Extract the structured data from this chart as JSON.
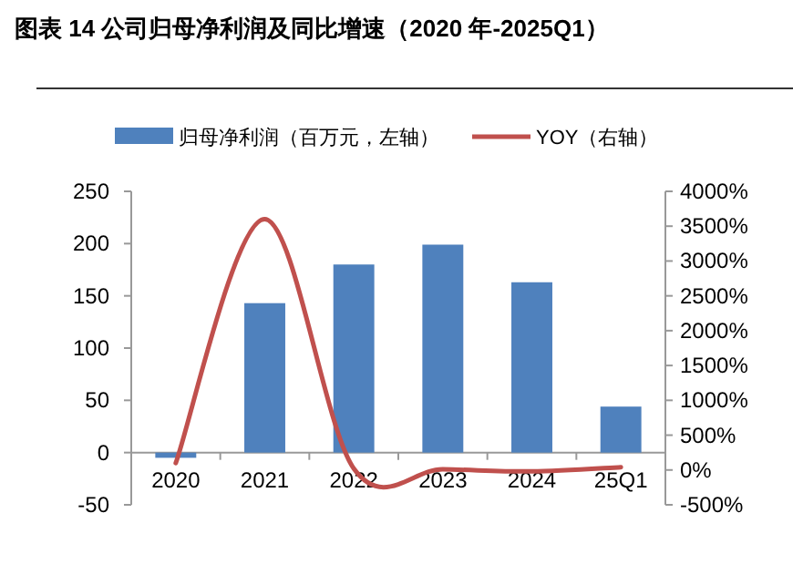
{
  "chart_data": {
    "type": "bar",
    "title": "图表 14  公司归母净利润及同比增速（2020 年-2025Q1）",
    "categories": [
      "2020",
      "2021",
      "2022",
      "2023",
      "2024",
      "25Q1"
    ],
    "series": [
      {
        "name": "归母净利润（百万元，左轴）",
        "color": "#4f81bd",
        "values": [
          -5,
          143,
          180,
          199,
          163,
          44
        ]
      },
      {
        "name": "YOY（右轴）",
        "type": "line",
        "axis": "y2",
        "color": "#c0504d",
        "values": [
          100,
          3600,
          20,
          10,
          -20,
          40
        ]
      }
    ],
    "ylim": [
      -50,
      250
    ],
    "yticks": [
      -50,
      0,
      50,
      100,
      150,
      200,
      250
    ],
    "y2lim": [
      -500,
      4000
    ],
    "y2ticks": [
      {
        "value": -500,
        "label": "-500%"
      },
      {
        "value": 0,
        "label": "0%"
      },
      {
        "value": 500,
        "label": "500%"
      },
      {
        "value": 1000,
        "label": "1000%"
      },
      {
        "value": 1500,
        "label": "1500%"
      },
      {
        "value": 2000,
        "label": "2000%"
      },
      {
        "value": 2500,
        "label": "2500%"
      },
      {
        "value": 3000,
        "label": "3000%"
      },
      {
        "value": 3500,
        "label": "3500%"
      },
      {
        "value": 4000,
        "label": "4000%"
      }
    ],
    "legend": "top",
    "grid": false
  }
}
